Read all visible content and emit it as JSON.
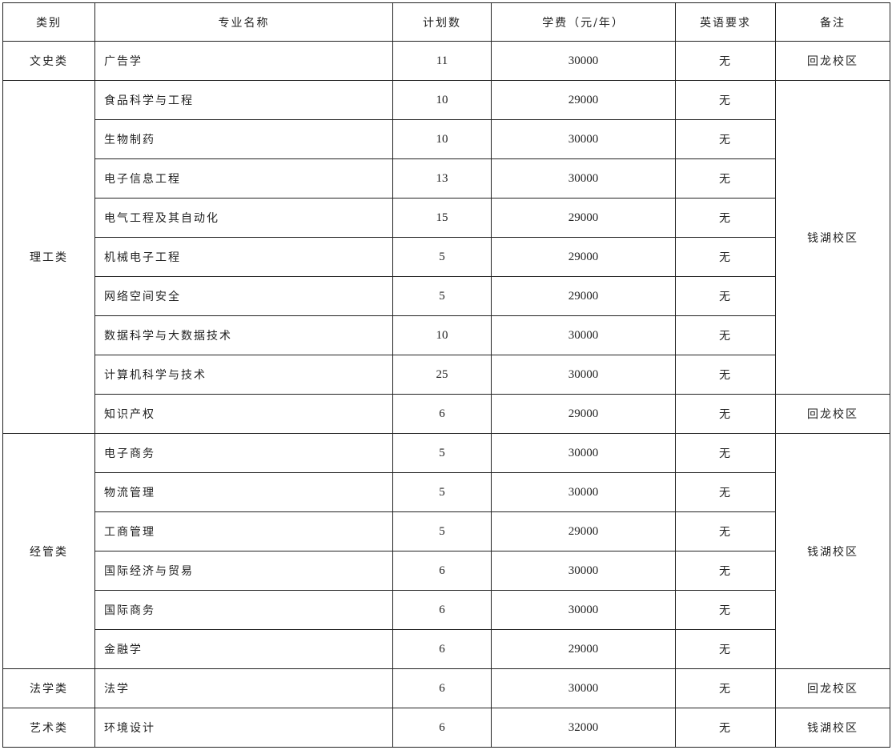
{
  "headers": [
    "类别",
    "专业名称",
    "计划数",
    "学费（元/年）",
    "英语要求",
    "备注"
  ],
  "groups": [
    {
      "category": "文史类",
      "rows": [
        {
          "name": "广告学",
          "plan": "11",
          "fee": "30000",
          "english": "无",
          "remark": "回龙校区"
        }
      ]
    },
    {
      "category": "理工类",
      "rows": [
        {
          "name": "食品科学与工程",
          "plan": "10",
          "fee": "29000",
          "english": "无",
          "remark": "钱湖校区"
        },
        {
          "name": "生物制药",
          "plan": "10",
          "fee": "30000",
          "english": "无",
          "remark": "钱湖校区"
        },
        {
          "name": "电子信息工程",
          "plan": "13",
          "fee": "30000",
          "english": "无",
          "remark": "钱湖校区"
        },
        {
          "name": "电气工程及其自动化",
          "plan": "15",
          "fee": "29000",
          "english": "无",
          "remark": "钱湖校区"
        },
        {
          "name": "机械电子工程",
          "plan": "5",
          "fee": "29000",
          "english": "无",
          "remark": "钱湖校区"
        },
        {
          "name": "网络空间安全",
          "plan": "5",
          "fee": "29000",
          "english": "无",
          "remark": "钱湖校区"
        },
        {
          "name": "数据科学与大数据技术",
          "plan": "10",
          "fee": "30000",
          "english": "无",
          "remark": "钱湖校区"
        },
        {
          "name": "计算机科学与技术",
          "plan": "25",
          "fee": "30000",
          "english": "无",
          "remark": "钱湖校区"
        },
        {
          "name": "知识产权",
          "plan": "6",
          "fee": "29000",
          "english": "无",
          "remark": "回龙校区"
        }
      ]
    },
    {
      "category": "经管类",
      "rows": [
        {
          "name": "电子商务",
          "plan": "5",
          "fee": "30000",
          "english": "无",
          "remark": "钱湖校区"
        },
        {
          "name": "物流管理",
          "plan": "5",
          "fee": "30000",
          "english": "无",
          "remark": "钱湖校区"
        },
        {
          "name": "工商管理",
          "plan": "5",
          "fee": "29000",
          "english": "无",
          "remark": "钱湖校区"
        },
        {
          "name": "国际经济与贸易",
          "plan": "6",
          "fee": "30000",
          "english": "无",
          "remark": "钱湖校区"
        },
        {
          "name": "国际商务",
          "plan": "6",
          "fee": "30000",
          "english": "无",
          "remark": "钱湖校区"
        },
        {
          "name": "金融学",
          "plan": "6",
          "fee": "29000",
          "english": "无",
          "remark": "钱湖校区"
        }
      ]
    },
    {
      "category": "法学类",
      "rows": [
        {
          "name": "法学",
          "plan": "6",
          "fee": "30000",
          "english": "无",
          "remark": "回龙校区"
        }
      ]
    },
    {
      "category": "艺术类",
      "rows": [
        {
          "name": "环境设计",
          "plan": "6",
          "fee": "32000",
          "english": "无",
          "remark": "钱湖校区"
        }
      ]
    }
  ]
}
